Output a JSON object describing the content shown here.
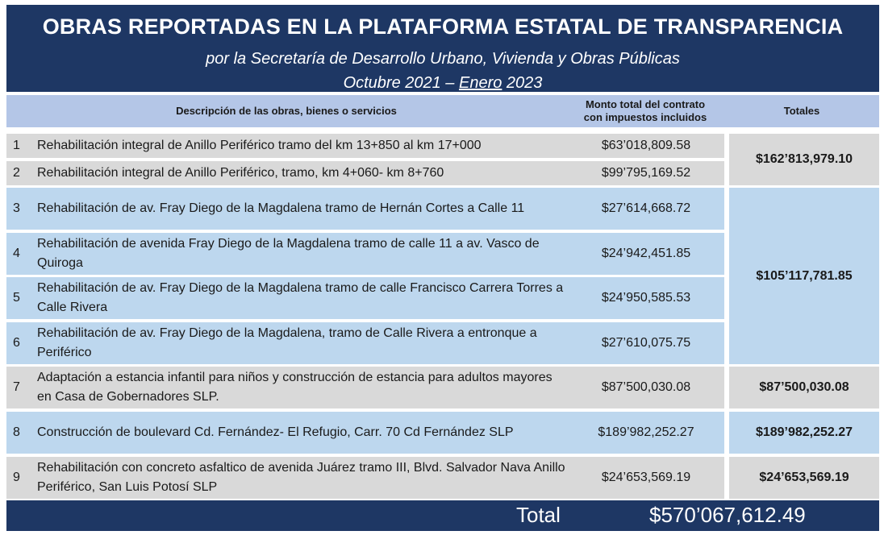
{
  "header": {
    "title": "OBRAS REPORTADAS EN LA PLATAFORMA ESTATAL DE TRANSPARENCIA",
    "subtitle": "por la Secretaría de Desarrollo Urbano, Vivienda y Obras Públicas",
    "period_start": "Octubre 2021 – ",
    "period_end": "Enero",
    "period_year": " 2023"
  },
  "columns": {
    "description": "Descripción de las obras, bienes o servicios",
    "amount_line1": "Monto total del contrato",
    "amount_line2": "con impuestos incluidos",
    "totals": "Totales"
  },
  "rows": [
    {
      "num": "1",
      "desc": "Rehabilitación integral de Anillo Periférico tramo del km 13+850 al km 17+000",
      "amount": "$63’018,809.58"
    },
    {
      "num": "2",
      "desc": "Rehabilitación integral de Anillo Periférico, tramo, km 4+060- km 8+760",
      "amount": "$99’795,169.52"
    },
    {
      "num": "3",
      "desc": "Rehabilitación de av. Fray Diego de la Magdalena tramo de Hernán Cortes a Calle 11",
      "amount": "$27’614,668.72"
    },
    {
      "num": "4",
      "desc": "Rehabilitación de avenida Fray Diego de la Magdalena tramo de calle 11 a av. Vasco de Quiroga",
      "amount": "$24’942,451.85"
    },
    {
      "num": "5",
      "desc": "Rehabilitación de av. Fray Diego de la Magdalena tramo de calle Francisco Carrera Torres a Calle Rivera",
      "amount": "$24’950,585.53"
    },
    {
      "num": "6",
      "desc": "Rehabilitación de av. Fray Diego de la Magdalena, tramo de Calle Rivera a entronque a Periférico",
      "amount": "$27’610,075.75"
    },
    {
      "num": "7",
      "desc": "Adaptación a estancia infantil para niños y construcción de estancia para adultos mayores en Casa de Gobernadores SLP.",
      "amount": "$87’500,030.08"
    },
    {
      "num": "8",
      "desc": "Construcción de boulevard Cd. Fernández- El Refugio, Carr. 70 Cd Fernández SLP",
      "amount": "$189’982,252.27"
    },
    {
      "num": "9",
      "desc": "Rehabilitación con concreto asfaltico de avenida Juárez tramo III, Blvd. Salvador Nava Anillo Periférico, San Luis Potosí SLP",
      "amount": "$24’653,569.19"
    }
  ],
  "totals": [
    {
      "group": "rows 1-2",
      "value": "$162’813,979.10"
    },
    {
      "group": "rows 3-6",
      "value": "$105’117,781.85"
    },
    {
      "group": "row 7",
      "value": "$87’500,030.08"
    },
    {
      "group": "row 8",
      "value": "$189’982,252.27"
    },
    {
      "group": "row 9",
      "value": "$24’653,569.19"
    }
  ],
  "footer": {
    "label": "Total",
    "value": "$570’067,612.49"
  },
  "colors": {
    "navy": "#1e3764",
    "header_blue": "#b4c6e7",
    "row_gray": "#d9d9d9",
    "row_blue": "#bdd7ee"
  }
}
